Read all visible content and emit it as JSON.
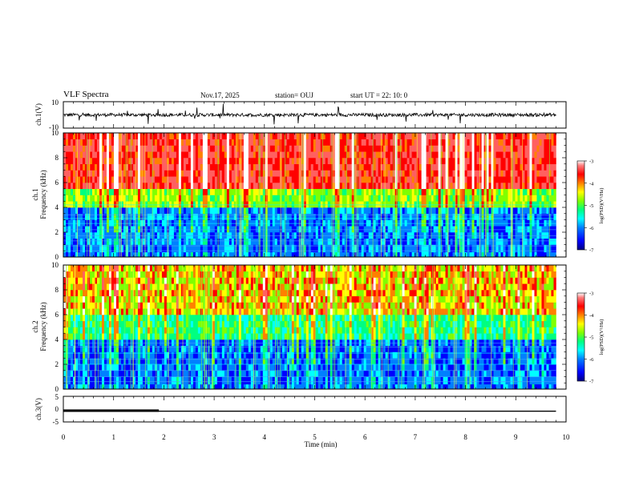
{
  "header": {
    "title": "VLF Spectra",
    "date": "Nov.17, 2025",
    "station": "station= OUJ",
    "start": "start  UT  =   22: 10: 0"
  },
  "chart_data": [
    {
      "type": "line",
      "name": "ch1-waveform",
      "ylabel": "ch.1(V)",
      "ylim": [
        -10,
        10
      ],
      "yticks": [
        "10",
        "-10"
      ],
      "xlim": [
        0,
        10
      ],
      "baseline": 0
    },
    {
      "type": "heatmap",
      "name": "ch1-spectrogram",
      "ylabel": "ch.1\nFrequency  (kHz)",
      "ylim": [
        0,
        10
      ],
      "yticks": [
        "0",
        "2",
        "4",
        "6",
        "8",
        "10"
      ],
      "xlim": [
        0,
        10
      ],
      "data_end_min": 9.8,
      "colorbar": {
        "label": "log(PSD)(V²/Hz)",
        "range": [
          -7,
          -3
        ],
        "ticks": [
          "-3",
          "-4",
          "-5",
          "-6",
          "-7"
        ]
      }
    },
    {
      "type": "heatmap",
      "name": "ch2-spectrogram",
      "ylabel": "ch.2\nFrequency  (kHz)",
      "ylim": [
        0,
        10
      ],
      "yticks": [
        "0",
        "2",
        "4",
        "6",
        "8",
        "10"
      ],
      "xlim": [
        0,
        10
      ],
      "data_end_min": 9.8,
      "colorbar": {
        "label": "log(PSD)(V²/Hz)",
        "range": [
          -7,
          -3
        ],
        "ticks": [
          "-3",
          "-4",
          "-5",
          "-6",
          "-7"
        ]
      }
    },
    {
      "type": "line",
      "name": "ch3-signal",
      "ylabel": "ch.3(V)",
      "ylim": [
        -5,
        5
      ],
      "yticks": [
        "5",
        "0",
        "-5"
      ],
      "xlim": [
        0,
        10
      ],
      "xlabel": "Time  (min)",
      "xticks": [
        "0",
        "1",
        "2",
        "3",
        "4",
        "5",
        "6",
        "7",
        "8",
        "9",
        "10"
      ],
      "series": [
        {
          "x": [
            0,
            9.8
          ],
          "y": [
            -0.8,
            -0.8
          ]
        },
        {
          "x": [
            0,
            1.9
          ],
          "y": [
            -0.6,
            -0.6
          ]
        }
      ]
    }
  ],
  "colors": {
    "colormap": [
      "#000080",
      "#0000ff",
      "#0080ff",
      "#00ffff",
      "#00ff80",
      "#80ff00",
      "#ffff00",
      "#ff8000",
      "#ff0000",
      "#ff6060",
      "#ffffff"
    ]
  }
}
